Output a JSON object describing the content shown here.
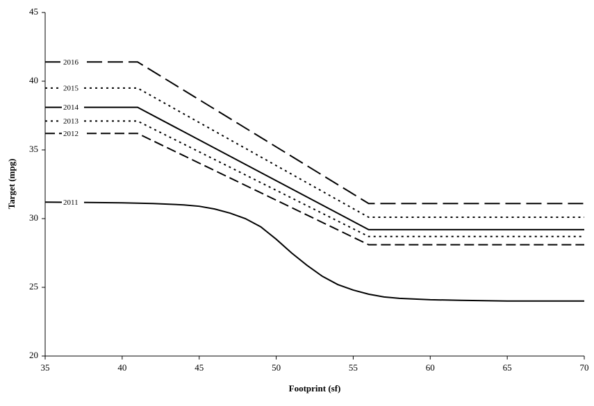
{
  "chart_data": {
    "type": "line",
    "x_label": "Footprint (sf)",
    "y_label": "Target (mpg)",
    "xlim": [
      35,
      70
    ],
    "xticks": [
      35,
      40,
      45,
      50,
      55,
      60,
      65,
      70
    ],
    "ylim": [
      20,
      45
    ],
    "yticks": [
      20,
      25,
      30,
      35,
      40,
      45
    ],
    "grid": false,
    "series": [
      {
        "name": "2016",
        "color": "#000000",
        "style": "long-dash",
        "x": [
          35,
          41,
          56,
          70
        ],
        "values": [
          41.4,
          41.4,
          31.1,
          31.1
        ]
      },
      {
        "name": "2015",
        "color": "#000000",
        "style": "dotted",
        "x": [
          35,
          41,
          56,
          70
        ],
        "values": [
          39.5,
          39.5,
          30.1,
          30.1
        ]
      },
      {
        "name": "2014",
        "color": "#000000",
        "style": "solid",
        "x": [
          35,
          41,
          56,
          70
        ],
        "values": [
          38.1,
          38.1,
          29.2,
          29.2
        ]
      },
      {
        "name": "2013",
        "color": "#000000",
        "style": "dotted",
        "x": [
          35,
          41,
          56,
          70
        ],
        "values": [
          37.1,
          37.1,
          28.7,
          28.7
        ]
      },
      {
        "name": "2012",
        "color": "#000000",
        "style": "dash",
        "x": [
          35,
          41,
          56,
          70
        ],
        "values": [
          36.2,
          36.2,
          28.1,
          28.1
        ]
      },
      {
        "name": "2011",
        "color": "#000000",
        "style": "solid",
        "x": [
          35,
          40,
          42,
          44,
          45,
          46,
          47,
          48,
          49,
          50,
          51,
          52,
          53,
          54,
          55,
          56,
          57,
          58,
          60,
          62,
          65,
          70
        ],
        "values": [
          31.2,
          31.15,
          31.1,
          31.0,
          30.9,
          30.7,
          30.4,
          30.0,
          29.4,
          28.5,
          27.5,
          26.6,
          25.8,
          25.2,
          24.8,
          24.5,
          24.3,
          24.2,
          24.1,
          24.05,
          24.0,
          24.0
        ]
      }
    ]
  }
}
